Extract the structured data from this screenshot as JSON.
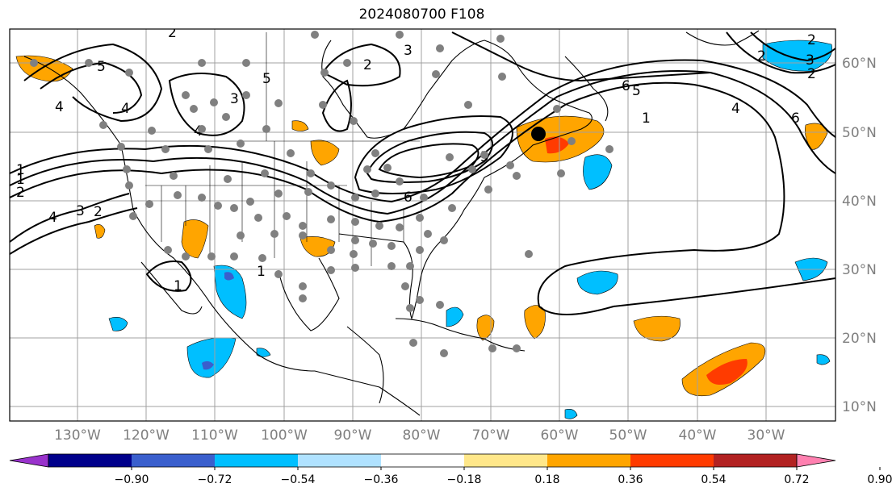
{
  "title": "2024080700 F108",
  "lon_labels": [
    "130°W",
    "120°W",
    "110°W",
    "100°W",
    "90°W",
    "80°W",
    "70°W",
    "60°W",
    "50°W",
    "40°W",
    "30°W"
  ],
  "lat_labels": [
    "60°N",
    "50°N",
    "40°N",
    "30°N",
    "20°N",
    "10°N"
  ],
  "colorbar": {
    "ticks": [
      "−0.90",
      "−0.72",
      "−0.54",
      "−0.36",
      "−0.18",
      "0.18",
      "0.36",
      "0.54",
      "0.72",
      "0.90"
    ],
    "colors": [
      "#9932cc",
      "#00008b",
      "#3a5fcd",
      "#00bfff",
      "#b0e2ff",
      "#ffffff",
      "#ffe78a",
      "#ffa500",
      "#ff3b00",
      "#b22222",
      "#ff80b0"
    ]
  },
  "contour_labels": [
    "2",
    "5",
    "2",
    "4",
    "3",
    "2",
    "1",
    "6",
    "4",
    "5",
    "3",
    "2",
    "4",
    "3",
    "2",
    "1",
    "2",
    "1",
    "1",
    "6",
    "5",
    "4",
    "1",
    "6",
    "5",
    "3",
    "2",
    "4"
  ],
  "colors": {
    "neg_light": "#00bfff",
    "neg_pale": "#b0e2ff",
    "neg_mid": "#3a5fcd",
    "pos_light": "#ffa500",
    "pos_red": "#ff3b00",
    "pos_dark": "#b22222",
    "station": "#808080"
  }
}
